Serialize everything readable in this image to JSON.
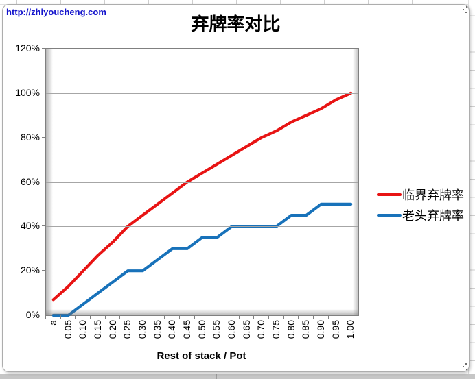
{
  "page": {
    "url_label": "http://zhiyoucheng.com",
    "url_color": "#1414cc"
  },
  "chart_data": {
    "type": "line",
    "title": "弃牌率对比",
    "xlabel": "Rest of stack / Pot",
    "ylabel": "",
    "categories": [
      "a",
      "0.05",
      "0.10",
      "0.15",
      "0.20",
      "0.25",
      "0.30",
      "0.35",
      "0.40",
      "0.45",
      "0.50",
      "0.55",
      "0.60",
      "0.65",
      "0.70",
      "0.75",
      "0.80",
      "0.85",
      "0.90",
      "0.95",
      "1.00"
    ],
    "series": [
      {
        "name": "临界弃牌率",
        "color": "#e81414",
        "values": [
          7,
          13,
          20,
          27,
          33,
          40,
          45,
          50,
          55,
          60,
          64,
          68,
          72,
          76,
          80,
          83,
          87,
          90,
          93,
          97,
          100
        ]
      },
      {
        "name": "老头弃牌率",
        "color": "#1872ba",
        "values": [
          0,
          0,
          5,
          10,
          15,
          20,
          20,
          25,
          30,
          30,
          35,
          35,
          40,
          40,
          40,
          40,
          45,
          45,
          50,
          50,
          50
        ]
      }
    ],
    "y_tick_labels": [
      "0%",
      "20%",
      "40%",
      "60%",
      "80%",
      "100%",
      "120%"
    ],
    "ylim": [
      0,
      120
    ],
    "y_step": 20,
    "grid": true,
    "legend_position": "right"
  }
}
